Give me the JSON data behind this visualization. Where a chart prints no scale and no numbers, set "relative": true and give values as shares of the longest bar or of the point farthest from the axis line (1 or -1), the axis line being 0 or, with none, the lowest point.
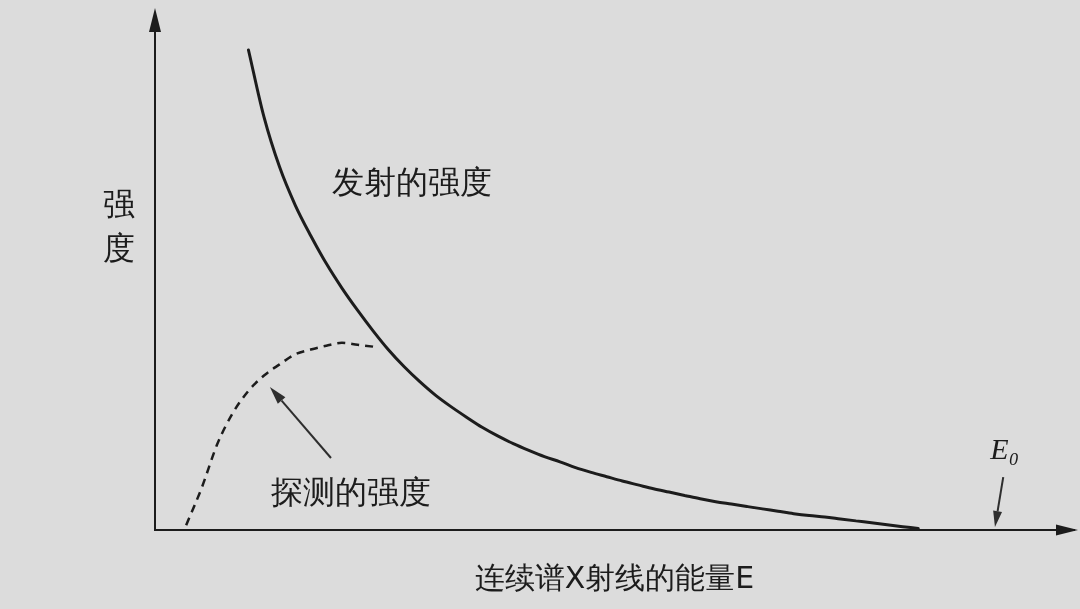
{
  "chart_data": {
    "type": "line",
    "xlabel": "连续谱X射线的能量E",
    "ylabel": "强度",
    "relative": true,
    "marker": "none",
    "annotations": [
      "E₀"
    ],
    "categories": [
      null,
      null,
      null,
      null,
      null,
      null,
      null,
      null,
      null,
      null,
      null,
      null,
      null,
      null,
      null,
      null,
      null,
      null,
      null,
      null,
      null,
      null,
      null,
      null,
      null,
      null,
      null,
      null,
      null,
      null,
      null,
      null,
      null,
      null,
      null,
      null,
      null,
      null,
      null,
      null,
      null,
      null,
      null,
      null,
      null,
      null,
      null,
      null,
      null,
      null,
      null,
      null,
      null,
      null,
      null,
      null,
      null,
      null,
      null,
      null
    ],
    "series": [
      {
        "name": "发射的强度",
        "color": "#1c1c1c",
        "line_style": "solid",
        "values": [
          null,
          null,
          null,
          null,
          null,
          null,
          1,
          0.86,
          0.756,
          0.677,
          0.613,
          0.555,
          0.504,
          0.458,
          0.415,
          0.375,
          0.34,
          0.309,
          0.281,
          0.257,
          0.235,
          0.214,
          0.196,
          0.18,
          0.166,
          0.153,
          0.142,
          0.13,
          0.12,
          0.111,
          0.102,
          0.094,
          0.086,
          0.079,
          0.072,
          0.065,
          0.059,
          0.054,
          0.049,
          0.044,
          0.039,
          0.034,
          0.03,
          0.027,
          0.023,
          0.019,
          0.015,
          0.011,
          0.007,
          0.003,
          null,
          null,
          null,
          null,
          null,
          null,
          null,
          null,
          null,
          null
        ]
      },
      {
        "name": "探测的强度",
        "color": "#1c1c1c",
        "line_style": "dashed",
        "values": [
          null,
          null,
          0.01,
          0.088,
          0.179,
          0.244,
          0.29,
          0.322,
          0.345,
          0.366,
          0.376,
          0.384,
          0.39,
          0.386,
          0.382,
          null,
          null,
          null,
          null,
          null,
          null,
          null,
          null,
          null,
          null,
          null,
          null,
          null,
          null,
          null,
          null,
          null,
          null,
          null,
          null,
          null,
          null,
          null,
          null,
          null,
          null,
          null,
          null,
          null,
          null,
          null,
          null,
          null,
          null,
          null,
          null,
          null,
          null,
          null,
          null,
          null,
          null,
          null,
          null,
          null
        ]
      }
    ]
  }
}
